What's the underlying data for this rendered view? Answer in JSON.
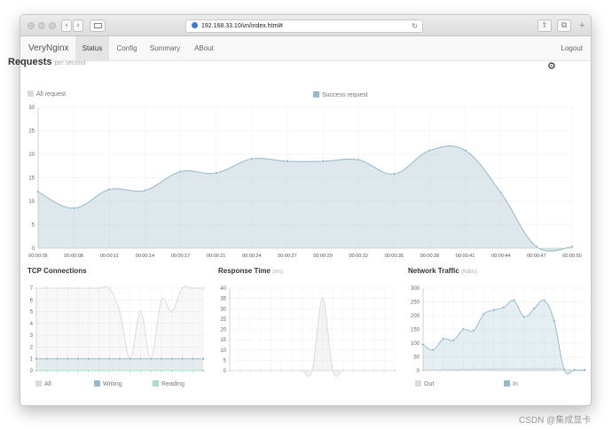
{
  "browser": {
    "url": "192.168.33.10/vn/index.html#",
    "back": "‹",
    "forward": "›",
    "reload": "↻",
    "share": "⇪",
    "tabs": "⧉",
    "new_tab": "+"
  },
  "app": {
    "brand": "VeryNginx",
    "tabs": [
      "Status",
      "Config",
      "Summary",
      "ABout"
    ],
    "active_tab": "Status",
    "logout": "Logout"
  },
  "requests": {
    "title": "Requests",
    "subtitle": "per second",
    "settings_icon": "gear-icon",
    "legend": [
      {
        "name": "All request",
        "color": "#dcdcdc"
      },
      {
        "name": "Success request",
        "color": "#97bbcd"
      }
    ]
  },
  "tcp": {
    "title": "TCP Connections",
    "legend": [
      {
        "name": "All",
        "color": "#dcdcdc"
      },
      {
        "name": "Writing",
        "color": "#97bbcd"
      },
      {
        "name": "Reading",
        "color": "#a8e0c4"
      }
    ]
  },
  "response": {
    "title": "Response Time",
    "unit": "(ms)"
  },
  "network": {
    "title": "Network Traffic",
    "unit": "(KiB/s)",
    "legend": [
      {
        "name": "Out",
        "color": "#dcdcdc"
      },
      {
        "name": "In",
        "color": "#97bbcd"
      }
    ]
  },
  "watermark": "CSDN @集成显卡",
  "chart_data": [
    {
      "type": "line",
      "id": "requests",
      "x": [
        "00:00:05",
        "00:00:08",
        "00:00:11",
        "00:00:14",
        "00:00:17",
        "00:00:21",
        "00:00:24",
        "00:00:27",
        "00:00:29",
        "00:00:32",
        "00:00:35",
        "00:00:38",
        "00:00:41",
        "00:00:44",
        "00:00:47",
        "00:00:50"
      ],
      "ylim": [
        0,
        30
      ],
      "yticks": [
        0,
        5,
        10,
        15,
        20,
        25,
        30
      ],
      "series": [
        {
          "name": "All request",
          "color": "#dcdcdc",
          "values": [
            12,
            8.5,
            12.5,
            12.3,
            16.3,
            16,
            19,
            18.5,
            18.5,
            18.8,
            15.8,
            20.8,
            20.8,
            11.8,
            0.3,
            0.3
          ]
        },
        {
          "name": "Success request",
          "color": "#97bbcd",
          "values": [
            12,
            8.5,
            12.5,
            12.3,
            16.3,
            16,
            19,
            18.5,
            18.5,
            18.8,
            15.8,
            20.8,
            20.8,
            11.8,
            0.3,
            0.3
          ]
        }
      ]
    },
    {
      "type": "line",
      "id": "tcp",
      "ylim": [
        0,
        7
      ],
      "yticks": [
        0,
        1,
        2,
        3,
        4,
        5,
        6,
        7
      ],
      "series": [
        {
          "name": "All",
          "color": "#dcdcdc",
          "values": [
            7,
            7,
            7,
            7,
            7,
            7,
            7,
            7,
            5,
            1,
            5,
            1,
            6,
            5,
            7,
            7,
            7
          ]
        },
        {
          "name": "Writing",
          "color": "#97bbcd",
          "values": [
            1,
            1,
            1,
            1,
            1,
            1,
            1,
            1,
            1,
            1,
            1,
            1,
            1,
            1,
            1,
            1,
            1
          ]
        },
        {
          "name": "Reading",
          "color": "#a8e0c4",
          "values": [
            0,
            0,
            0,
            0,
            0,
            0,
            0,
            0,
            0,
            0,
            0,
            0,
            0,
            0,
            0,
            0,
            0
          ]
        }
      ]
    },
    {
      "type": "line",
      "id": "response",
      "ylim": [
        0,
        40
      ],
      "yticks": [
        0,
        5,
        10,
        15,
        20,
        25,
        30,
        35,
        40
      ],
      "series": [
        {
          "name": "Response Time",
          "color": "#dcdcdc",
          "values": [
            0,
            0,
            0,
            0,
            0,
            0,
            0,
            0,
            0,
            35,
            0,
            0,
            0,
            0,
            0,
            0,
            0
          ]
        }
      ]
    },
    {
      "type": "line",
      "id": "network",
      "ylim": [
        0,
        300
      ],
      "yticks": [
        0,
        50,
        100,
        150,
        200,
        250,
        300
      ],
      "series": [
        {
          "name": "Out",
          "color": "#dcdcdc",
          "values": [
            2,
            2,
            3,
            3,
            5,
            5,
            5,
            6,
            6,
            6,
            6,
            7,
            7,
            7,
            7,
            2,
            2
          ]
        },
        {
          "name": "In",
          "color": "#97bbcd",
          "values": [
            95,
            75,
            115,
            110,
            150,
            145,
            205,
            220,
            230,
            255,
            195,
            225,
            255,
            180,
            2,
            2,
            2
          ]
        }
      ]
    }
  ]
}
